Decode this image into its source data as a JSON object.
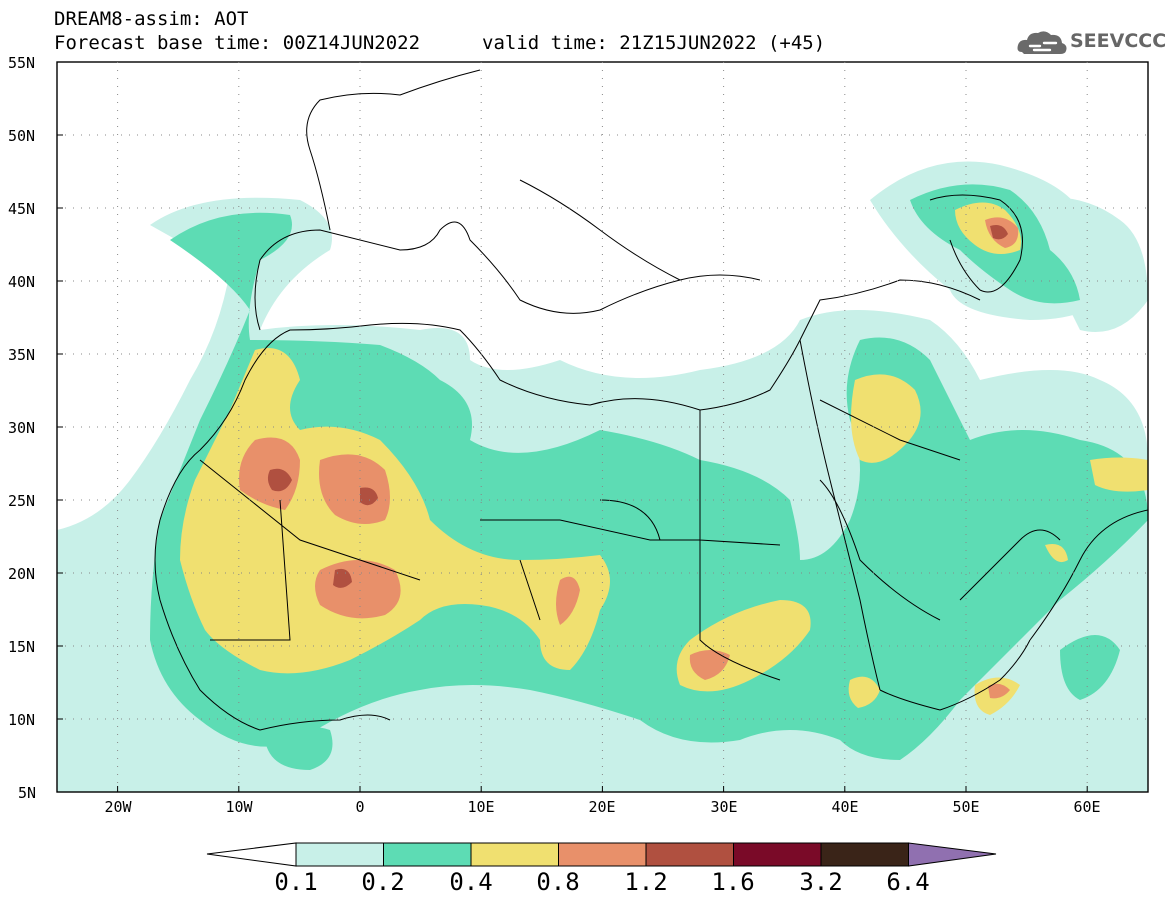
{
  "header": {
    "title_line1": "DREAM8-assim: AOT",
    "base_time": "Forecast base time: 00Z14JUN2022",
    "valid_time": "valid time: 21Z15JUN2022 (+45)",
    "logo_text": "SEEVCCC"
  },
  "map": {
    "lat_labels": [
      "55N",
      "50N",
      "45N",
      "40N",
      "35N",
      "30N",
      "25N",
      "20N",
      "15N",
      "10N",
      "5N"
    ],
    "lon_labels": [
      "20W",
      "10W",
      "0",
      "10E",
      "20E",
      "30E",
      "40E",
      "50E",
      "60E"
    ],
    "extent": {
      "lon": [
        -25,
        65
      ],
      "lat": [
        5,
        55
      ]
    }
  },
  "colorbar": {
    "labels": [
      "0.1",
      "0.2",
      "0.4",
      "0.8",
      "1.2",
      "1.6",
      "3.2",
      "6.4"
    ],
    "colors": [
      "#ffffff",
      "#c8f0e8",
      "#5ddcb4",
      "#f0e070",
      "#e8906a",
      "#b05040",
      "#7a0a28",
      "#3a2418",
      "#9070b0"
    ]
  }
}
